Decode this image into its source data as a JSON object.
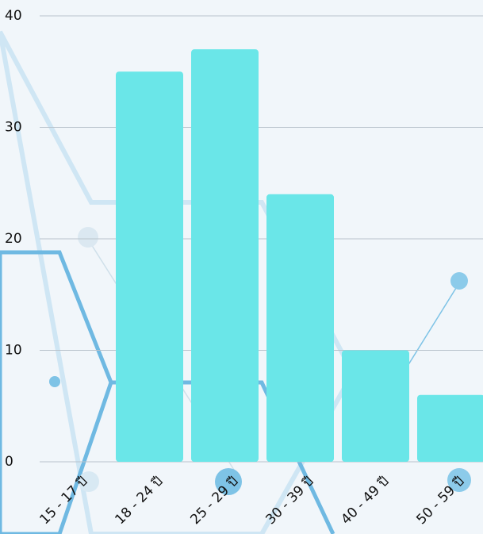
{
  "chart_data": {
    "type": "bar",
    "categories": [
      "15 - 17 ปี",
      "18 - 24 ปี",
      "25 - 29 ปี",
      "30 - 39 ปี",
      "40 - 49 ปี",
      "50 - 59 ปี"
    ],
    "values": [
      0,
      35,
      37,
      24,
      10,
      6
    ],
    "color": "#6ae6e8",
    "ylim": [
      0,
      40
    ],
    "yticks": [
      0,
      10,
      20,
      30,
      40
    ],
    "grid": true
  }
}
